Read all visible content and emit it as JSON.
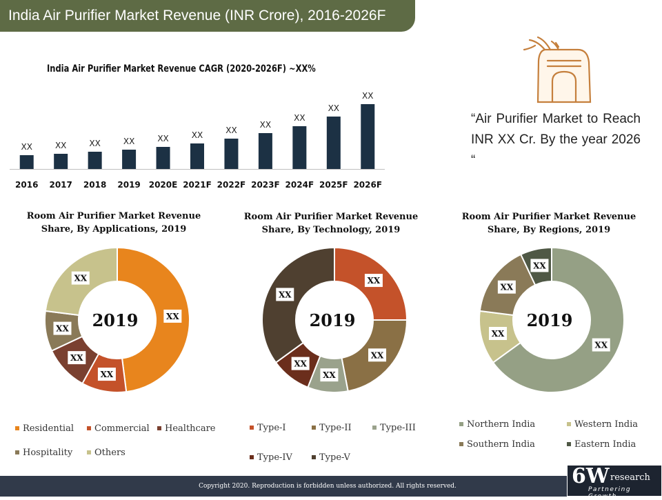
{
  "header": {
    "title": "India Air Purifier Market Revenue (INR Crore), 2016-2026F"
  },
  "callout": {
    "text": "“Air Purifier Market to Reach INR XX Cr. By the year 2026 “"
  },
  "footer": {
    "copyright": "Copyright 2020. Reproduction is forbidden unless authorized. All rights reserved.",
    "logo_main": "6W",
    "logo_sub": "research",
    "logo_tagline": "Partnering Growth"
  },
  "colors": {
    "banner": "#5e6b45",
    "bar": "#1c3144",
    "footer": "#313a4a"
  },
  "icon": "air-purifier-icon",
  "chart_data": [
    {
      "type": "bar",
      "title": "India Air Purifier Market Revenue CAGR (2020-2026F) ~XX%",
      "categories": [
        "2016",
        "2017",
        "2018",
        "2019",
        "2020E",
        "2021F",
        "2022F",
        "2023F",
        "2024F",
        "2025F",
        "2026F"
      ],
      "values": [
        20,
        22,
        25,
        28,
        32,
        37,
        44,
        52,
        62,
        76,
        94
      ],
      "data_labels": [
        "XX",
        "XX",
        "XX",
        "XX",
        "XX",
        "XX",
        "XX",
        "XX",
        "XX",
        "XX",
        "XX"
      ],
      "ylim": [
        0,
        100
      ],
      "grid": false,
      "color": "#1c3144"
    },
    {
      "type": "pie",
      "title_line1": "Room Air Purifier Market Revenue",
      "title_line2": "Share, By Applications, 2019",
      "center_label": "2019",
      "labels": [
        "Residential",
        "Commercial",
        "Healthcare",
        "Hospitality",
        "Others"
      ],
      "values": [
        48,
        10,
        10,
        9,
        23
      ],
      "data_labels": [
        "XX",
        "XX",
        "XX",
        "XX",
        "XX"
      ],
      "colors": [
        "#e8851d",
        "#c4522a",
        "#7a4030",
        "#8a7a58",
        "#c7c28c"
      ]
    },
    {
      "type": "pie",
      "title_line1": "Room Air Purifier Market Revenue",
      "title_line2": "Share, By Technology, 2019",
      "center_label": "2019",
      "labels": [
        "Type-I",
        "Type-II",
        "Type-III",
        "Type-IV",
        "Type-V"
      ],
      "values": [
        25,
        22,
        9,
        9,
        35
      ],
      "data_labels": [
        "XX",
        "XX",
        "XX",
        "XX",
        "XX"
      ],
      "colors": [
        "#c4522a",
        "#8a7045",
        "#9aa28c",
        "#6b2e1c",
        "#4f4030"
      ]
    },
    {
      "type": "pie",
      "title_line1": "Room Air Purifier Market Revenue",
      "title_line2": "Share, By Regions, 2019",
      "center_label": "2019",
      "labels": [
        "Northern India",
        "Western India",
        "Southern India",
        "Eastern India"
      ],
      "values": [
        65,
        12,
        16,
        7
      ],
      "data_labels": [
        "XX",
        "XX",
        "XX",
        "XX"
      ],
      "colors": [
        "#95a085",
        "#c7c28c",
        "#8a7a58",
        "#4f5845"
      ]
    }
  ]
}
